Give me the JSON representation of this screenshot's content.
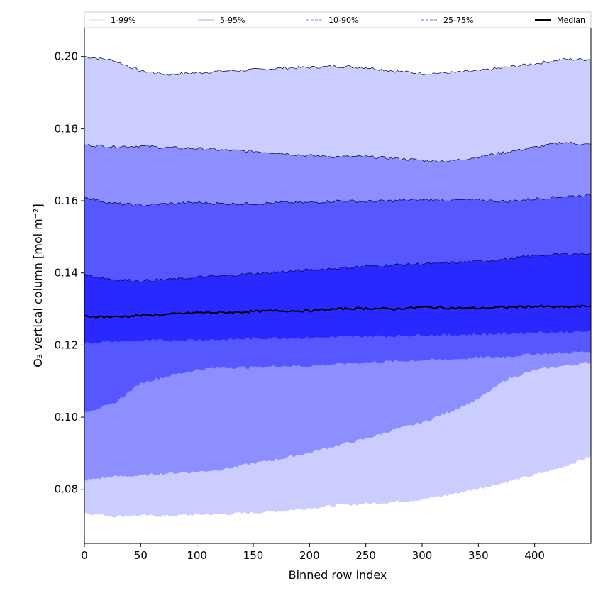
{
  "chart_data": {
    "type": "area",
    "xlabel": "Binned row index",
    "ylabel": "O₃ vertical column [mol m⁻²]",
    "xlim": [
      0,
      450
    ],
    "ylim": [
      0.065,
      0.208
    ],
    "xticks": [
      0,
      50,
      100,
      150,
      200,
      250,
      300,
      350,
      400
    ],
    "yticks": [
      0.08,
      0.1,
      0.12,
      0.14,
      0.16,
      0.18,
      0.2
    ],
    "grid": false,
    "legend_position": "top",
    "x": [
      0,
      25,
      50,
      75,
      100,
      125,
      150,
      175,
      200,
      225,
      250,
      275,
      300,
      325,
      350,
      375,
      400,
      425,
      450
    ],
    "bands": [
      {
        "name": "1-99%",
        "line_style": "solid-thin",
        "fill": "#cccdff",
        "lower": [
          0.0735,
          0.0725,
          0.0727,
          0.0726,
          0.073,
          0.0731,
          0.0735,
          0.074,
          0.0748,
          0.0755,
          0.076,
          0.0765,
          0.0772,
          0.0785,
          0.0802,
          0.082,
          0.084,
          0.0862,
          0.0892
        ],
        "upper": [
          0.2,
          0.199,
          0.196,
          0.195,
          0.1955,
          0.196,
          0.1963,
          0.1968,
          0.197,
          0.1973,
          0.197,
          0.196,
          0.1953,
          0.1955,
          0.196,
          0.197,
          0.198,
          0.1992,
          0.1992
        ]
      },
      {
        "name": "5-95%",
        "line_style": "solid-thin",
        "fill": "#8e8fff",
        "lower": [
          0.0825,
          0.0835,
          0.0838,
          0.0845,
          0.0848,
          0.0857,
          0.0872,
          0.0885,
          0.0902,
          0.0922,
          0.094,
          0.0965,
          0.0985,
          0.1015,
          0.105,
          0.1105,
          0.113,
          0.1142,
          0.1152
        ],
        "upper": [
          0.1755,
          0.175,
          0.1752,
          0.1747,
          0.1745,
          0.174,
          0.1737,
          0.1732,
          0.1725,
          0.1722,
          0.1722,
          0.1718,
          0.1712,
          0.171,
          0.1722,
          0.1735,
          0.1748,
          0.1762,
          0.1755
        ]
      },
      {
        "name": "10-90%",
        "line_style": "dashed",
        "fill": "#5757ff",
        "lower": [
          0.1015,
          0.1035,
          0.1095,
          0.1115,
          0.1132,
          0.1138,
          0.1138,
          0.1142,
          0.1142,
          0.1148,
          0.1152,
          0.1155,
          0.1158,
          0.116,
          0.1165,
          0.1168,
          0.1175,
          0.1178,
          0.1182
        ],
        "upper": [
          0.161,
          0.1593,
          0.1587,
          0.1592,
          0.1595,
          0.1592,
          0.1592,
          0.1595,
          0.1595,
          0.16,
          0.1598,
          0.16,
          0.1603,
          0.1602,
          0.1602,
          0.1598,
          0.1605,
          0.1612,
          0.1615
        ]
      },
      {
        "name": "25-75%",
        "line_style": "dashed",
        "fill": "#2828ff",
        "lower": [
          0.1205,
          0.121,
          0.1212,
          0.1213,
          0.1215,
          0.1215,
          0.1218,
          0.122,
          0.122,
          0.1222,
          0.1225,
          0.1225,
          0.1228,
          0.1228,
          0.123,
          0.1232,
          0.1235,
          0.1235,
          0.1238
        ],
        "upper": [
          0.1395,
          0.1382,
          0.1378,
          0.1382,
          0.1388,
          0.1392,
          0.1398,
          0.1403,
          0.1408,
          0.1413,
          0.1418,
          0.1422,
          0.1425,
          0.1428,
          0.1432,
          0.1438,
          0.1448,
          0.1452,
          0.1455
        ]
      }
    ],
    "median": {
      "name": "Median",
      "color": "#000000",
      "values": [
        0.128,
        0.1278,
        0.1282,
        0.1285,
        0.129,
        0.129,
        0.1293,
        0.1295,
        0.1295,
        0.13,
        0.1302,
        0.13,
        0.1305,
        0.1303,
        0.1302,
        0.1305,
        0.1307,
        0.1305,
        0.1308
      ]
    }
  }
}
